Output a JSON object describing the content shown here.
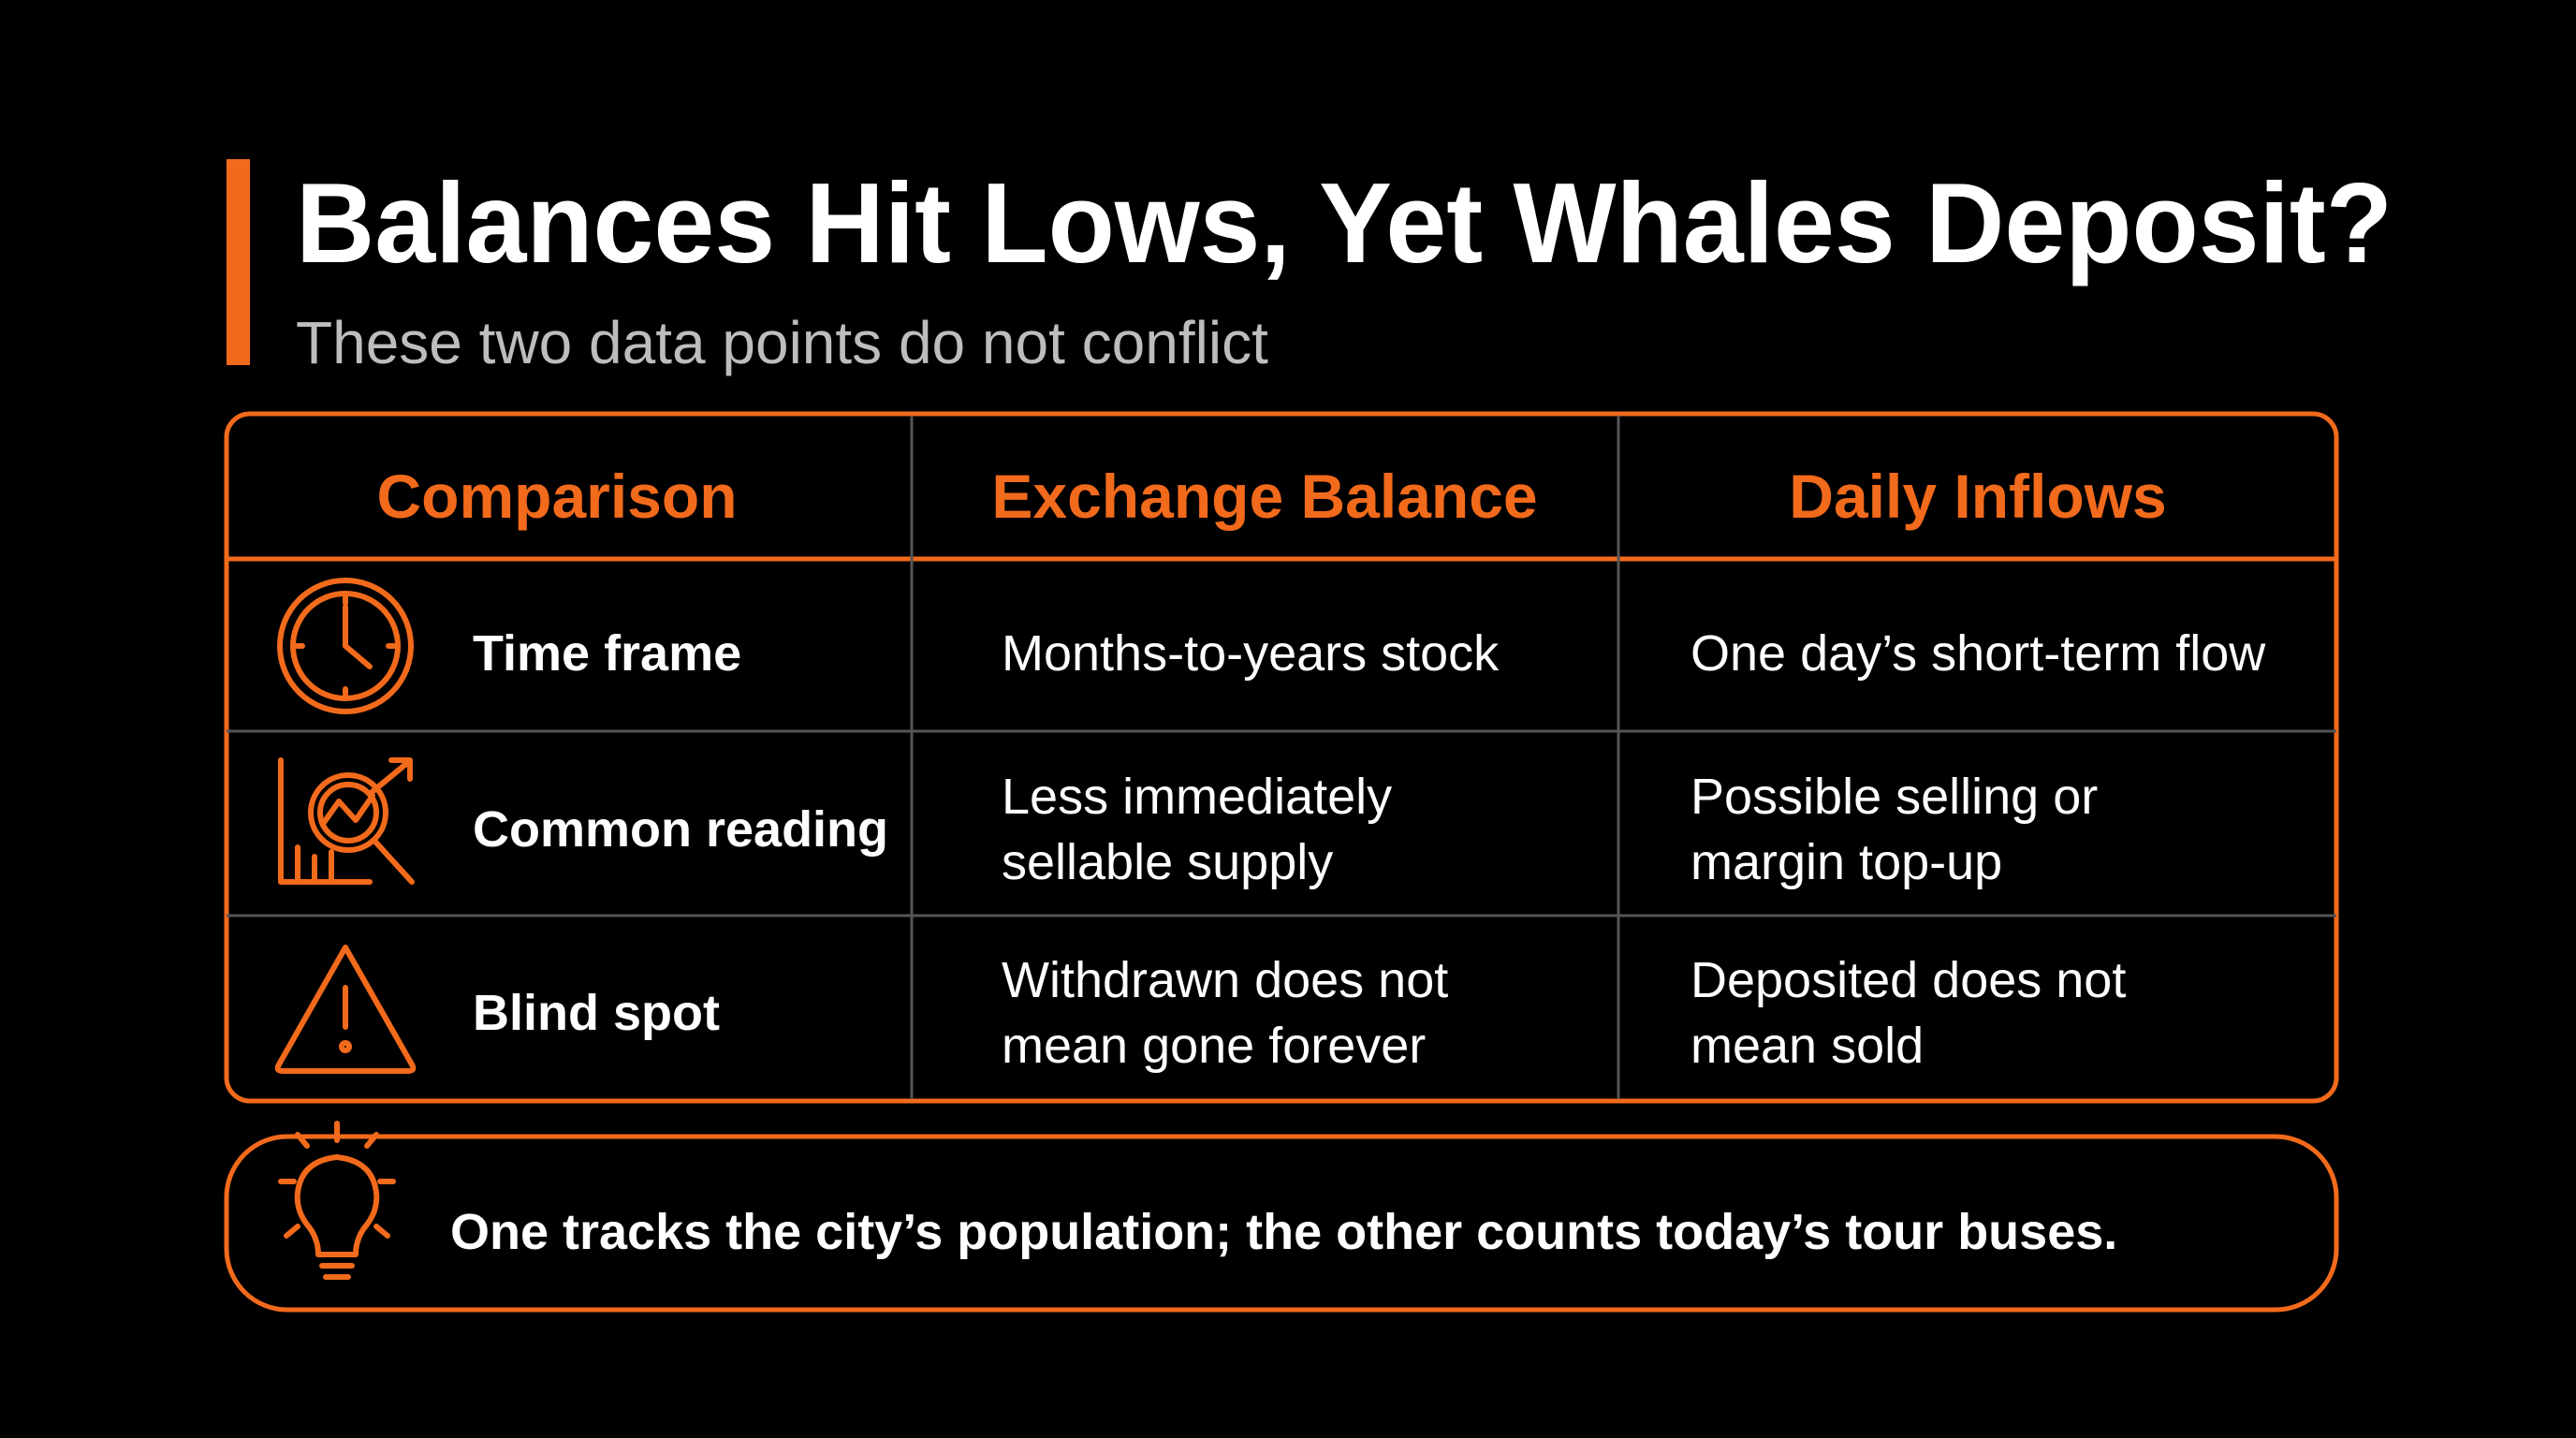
{
  "header": {
    "title": "Balances Hit Lows, Yet Whales Deposit?",
    "subtitle": "These two data points do not conflict"
  },
  "table": {
    "headers": [
      "Comparison",
      "Exchange Balance",
      "Daily Inflows"
    ],
    "rows": [
      [
        [
          "Time frame"
        ],
        [
          "Months-to-years stock"
        ],
        [
          "One day’s short-term flow"
        ]
      ],
      [
        [
          "Common reading"
        ],
        [
          "Less immediately",
          "sellable supply"
        ],
        [
          "Possible selling or",
          "margin top-up"
        ]
      ],
      [
        [
          "Blind spot"
        ],
        [
          "Withdrawn does not",
          "mean gone forever"
        ],
        [
          "Deposited does not",
          "mean sold"
        ]
      ]
    ]
  },
  "footer": {
    "text": "One tracks the city’s population; the other counts today’s tour buses."
  }
}
